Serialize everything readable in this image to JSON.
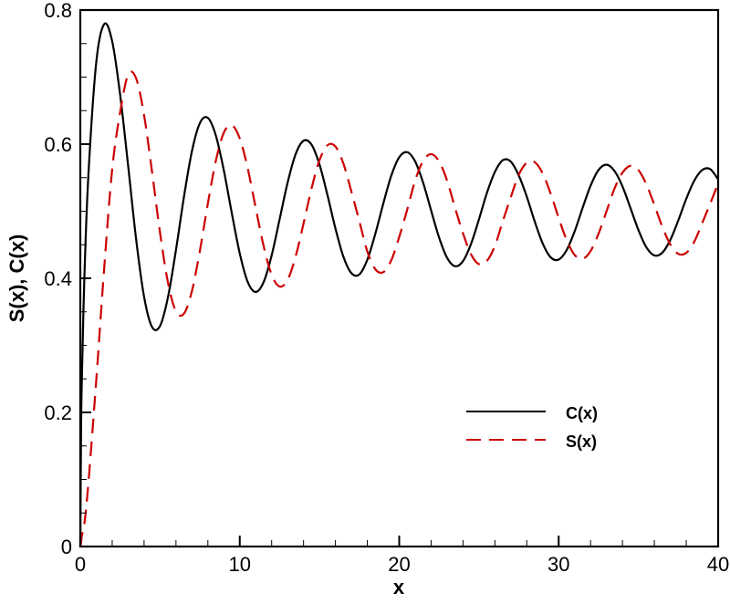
{
  "chart_data": {
    "type": "line",
    "title": "",
    "xlabel": "x",
    "ylabel": "S(x), C(x)",
    "xlim": [
      0,
      40
    ],
    "ylim": [
      0,
      0.8
    ],
    "x_ticks": [
      "0",
      "10",
      "20",
      "30",
      "40"
    ],
    "x_tick_values": [
      0,
      10,
      20,
      30,
      40
    ],
    "x_minor_step": 2,
    "y_ticks": [
      "0",
      "0.2",
      "0.4",
      "0.6",
      "0.8"
    ],
    "y_tick_values": [
      0,
      0.2,
      0.4,
      0.6,
      0.8
    ],
    "y_minor_step": 0.05,
    "grid": false,
    "legend_position": "lower right (inside)",
    "x": [
      0,
      0.05,
      0.1,
      0.25,
      0.5,
      1,
      1.5,
      2,
      2.5,
      3,
      3.5,
      4,
      4.5,
      5,
      5.5,
      6,
      6.5,
      7,
      7.5,
      8,
      8.5,
      9,
      9.5,
      10,
      10.5,
      11,
      11.5,
      12,
      12.5,
      13,
      13.5,
      14,
      14.5,
      15,
      15.5,
      16,
      16.5,
      17,
      17.5,
      18,
      18.5,
      19,
      19.5,
      20,
      20.5,
      21,
      21.5,
      22,
      22.5,
      23,
      23.5,
      24,
      24.5,
      25,
      25.5,
      26,
      26.5,
      27,
      27.5,
      28,
      28.5,
      29,
      29.5,
      30,
      30.5,
      31,
      31.5,
      32,
      32.5,
      33,
      33.5,
      34,
      34.5,
      35,
      35.5,
      36,
      36.5,
      37,
      37.5,
      38,
      38.5,
      39,
      39.5,
      40
    ],
    "series": [
      {
        "name": "C(x)",
        "color": "#000000",
        "style": "solid",
        "values": [
          0,
          0.178,
          0.252,
          0.3965,
          0.5503,
          0.7217,
          0.779,
          0.7533,
          0.6734,
          0.5678,
          0.4584,
          0.3724,
          0.3274,
          0.3289,
          0.372,
          0.4423,
          0.5214,
          0.5895,
          0.6315,
          0.6392,
          0.6129,
          0.561,
          0.4972,
          0.4371,
          0.3945,
          0.3797,
          0.3945,
          0.4341,
          0.488,
          0.5426,
          0.5849,
          0.6051,
          0.5993,
          0.5696,
          0.5241,
          0.4743,
          0.4321,
          0.4077,
          0.4057,
          0.4277,
          0.4662,
          0.5113,
          0.5529,
          0.5805,
          0.5881,
          0.5741,
          0.5424,
          0.5011,
          0.4607,
          0.4306,
          0.4179,
          0.4256,
          0.451,
          0.4878,
          0.5273,
          0.5586,
          0.5761,
          0.5739,
          0.5531,
          0.5217,
          0.4845,
          0.4518,
          0.4312,
          0.4279,
          0.442,
          0.4699,
          0.5049,
          0.538,
          0.5615,
          0.5694,
          0.56,
          0.537,
          0.5049,
          0.472,
          0.4462,
          0.4341,
          0.4382,
          0.4571,
          0.4862,
          0.5184,
          0.5454,
          0.5614,
          0.5628,
          0.5475
        ]
      },
      {
        "name": "S(x)",
        "color": "#cc0000",
        "style": "dashed",
        "values": [
          0,
          0.006,
          0.0168,
          0.0331,
          0.0924,
          0.2476,
          0.4155,
          0.5627,
          0.6477,
          0.7036,
          0.6981,
          0.6431,
          0.5586,
          0.468,
          0.3933,
          0.3506,
          0.3473,
          0.3809,
          0.4411,
          0.5116,
          0.5751,
          0.6171,
          0.6284,
          0.6085,
          0.5637,
          0.505,
          0.4477,
          0.4054,
          0.3877,
          0.3978,
          0.4322,
          0.4816,
          0.5338,
          0.576,
          0.5984,
          0.5964,
          0.571,
          0.5293,
          0.4851,
          0.4399,
          0.4135,
          0.4091,
          0.4267,
          0.4616,
          0.5023,
          0.5459,
          0.5749,
          0.5851,
          0.5743,
          0.5458,
          0.5051,
          0.467,
          0.4359,
          0.4211,
          0.4259,
          0.4483,
          0.4854,
          0.5211,
          0.5545,
          0.5722,
          0.5731,
          0.5563,
          0.526,
          0.49,
          0.457,
          0.4349,
          0.429,
          0.4406,
          0.4665,
          0.4998,
          0.5338,
          0.5575,
          0.5677,
          0.5613,
          0.5401,
          0.5094,
          0.4768,
          0.4504,
          0.4364,
          0.4379,
          0.4544,
          0.4822,
          0.5112,
          0.5415
        ]
      }
    ]
  },
  "legend": {
    "items": [
      {
        "label": "C(x)",
        "color": "#000000",
        "style": "solid"
      },
      {
        "label": "S(x)",
        "color": "#cc0000",
        "style": "dashed"
      }
    ]
  }
}
